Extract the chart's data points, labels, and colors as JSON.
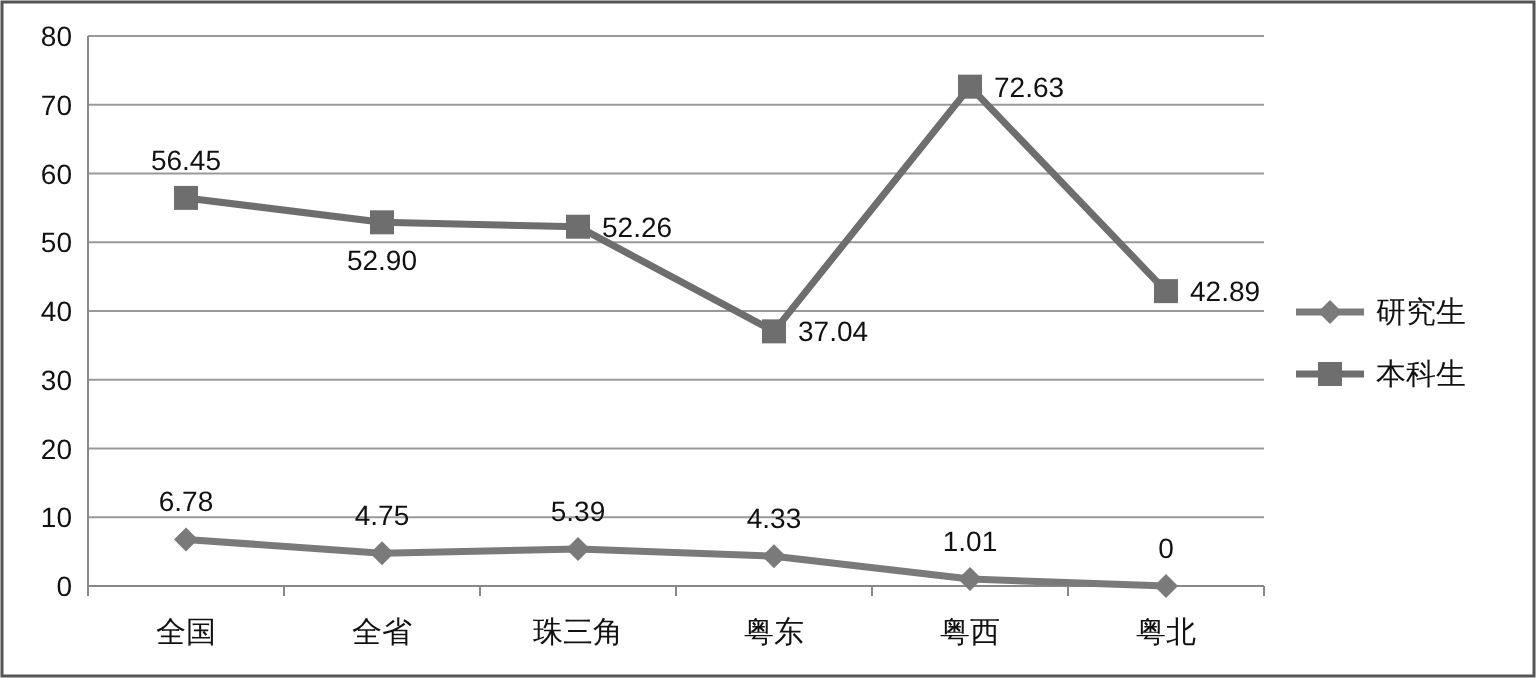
{
  "chart_data": {
    "type": "line",
    "categories": [
      "全国",
      "全省",
      "珠三角",
      "粤东",
      "粤西",
      "粤北"
    ],
    "series": [
      {
        "name": "研究生",
        "color": "#7a7a7a",
        "marker": "diamond",
        "values": [
          6.78,
          4.75,
          5.39,
          4.33,
          1.01,
          0
        ],
        "value_labels": [
          "6.78",
          "4.75",
          "5.39",
          "4.33",
          "1.01",
          "0"
        ]
      },
      {
        "name": "本科生",
        "color": "#6e6e6e",
        "marker": "square",
        "values": [
          56.45,
          52.9,
          52.26,
          37.04,
          72.63,
          42.89
        ],
        "value_labels": [
          "56.45",
          "52.90",
          "52.26",
          "37.04",
          "72.63",
          "42.89"
        ]
      }
    ],
    "ylim": [
      0,
      80
    ],
    "yticks": [
      0,
      10,
      20,
      30,
      40,
      50,
      60,
      70,
      80
    ],
    "grid": "y",
    "legend": "right",
    "line_style": "solid"
  }
}
